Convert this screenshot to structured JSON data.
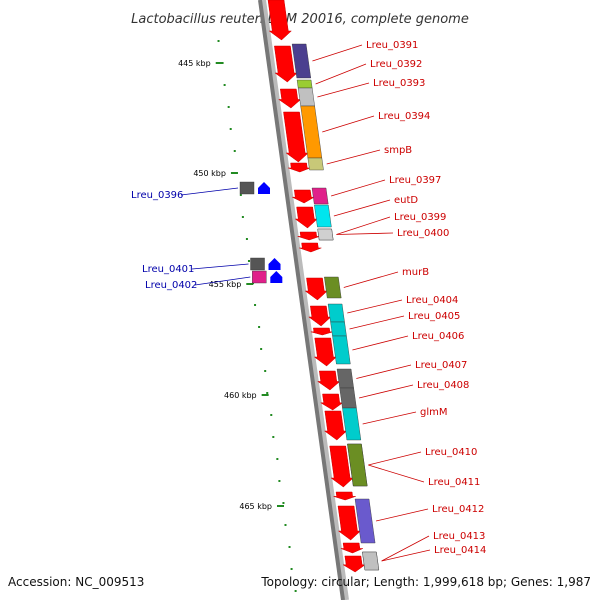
{
  "title": "Lactobacillus reuteri DSM 20016, complete genome",
  "footer": {
    "accession": "Accession: NC_009513",
    "topology": "Topology: circular; Length: 1,999,618 bp; Genes: 1,987"
  },
  "ticks": [
    {
      "label": "445 kbp"
    },
    {
      "label": "450 kbp"
    },
    {
      "label": "455 kbp"
    },
    {
      "label": "460 kbp"
    },
    {
      "label": "465 kbp"
    }
  ],
  "genes_right": [
    {
      "name": "Lreu_0391",
      "color": "#4b3f8f"
    },
    {
      "name": "Lreu_0392",
      "color": "#9acd32"
    },
    {
      "name": "Lreu_0393",
      "color": "#c0c0c0"
    },
    {
      "name": "Lreu_0394",
      "color": "#ff9900"
    },
    {
      "name": "smpB",
      "color": "#c8c878"
    },
    {
      "name": "Lreu_0397",
      "color": "#e0208a"
    },
    {
      "name": "eutD",
      "color": "#00e5ee"
    },
    {
      "name": "Lreu_0399",
      "color": "#d0d0d0"
    },
    {
      "name": "Lreu_0400",
      "color": "#d0d0d0"
    },
    {
      "name": "murB",
      "color": "#6b8e23"
    },
    {
      "name": "Lreu_0404",
      "color": "#00cccc"
    },
    {
      "name": "Lreu_0405",
      "color": "#00cccc"
    },
    {
      "name": "Lreu_0406",
      "color": "#00cccc"
    },
    {
      "name": "Lreu_0407",
      "color": "#666666"
    },
    {
      "name": "Lreu_0408",
      "color": "#666666"
    },
    {
      "name": "glmM",
      "color": "#00cccc"
    },
    {
      "name": "Lreu_0410",
      "color": "#6b8e23"
    },
    {
      "name": "Lreu_0411",
      "color": "#6b8e23"
    },
    {
      "name": "Lreu_0412",
      "color": "#6a5acd"
    },
    {
      "name": "Lreu_0413",
      "color": "#c0c0c0"
    },
    {
      "name": "Lreu_0414",
      "color": "#c0c0c0"
    }
  ],
  "genes_left": [
    {
      "name": "Lreu_0396",
      "color": "#555555"
    },
    {
      "name": "Lreu_0401",
      "color": "#555555"
    },
    {
      "name": "Lreu_0402",
      "color": "#e0208a"
    }
  ],
  "colors": {
    "backbone": "#888888",
    "cds_arrow": "#ff0000",
    "reverse_arrow": "#0000ff",
    "tick": "#228b22",
    "label_right": "#cc0000",
    "label_left": "#0000aa"
  }
}
